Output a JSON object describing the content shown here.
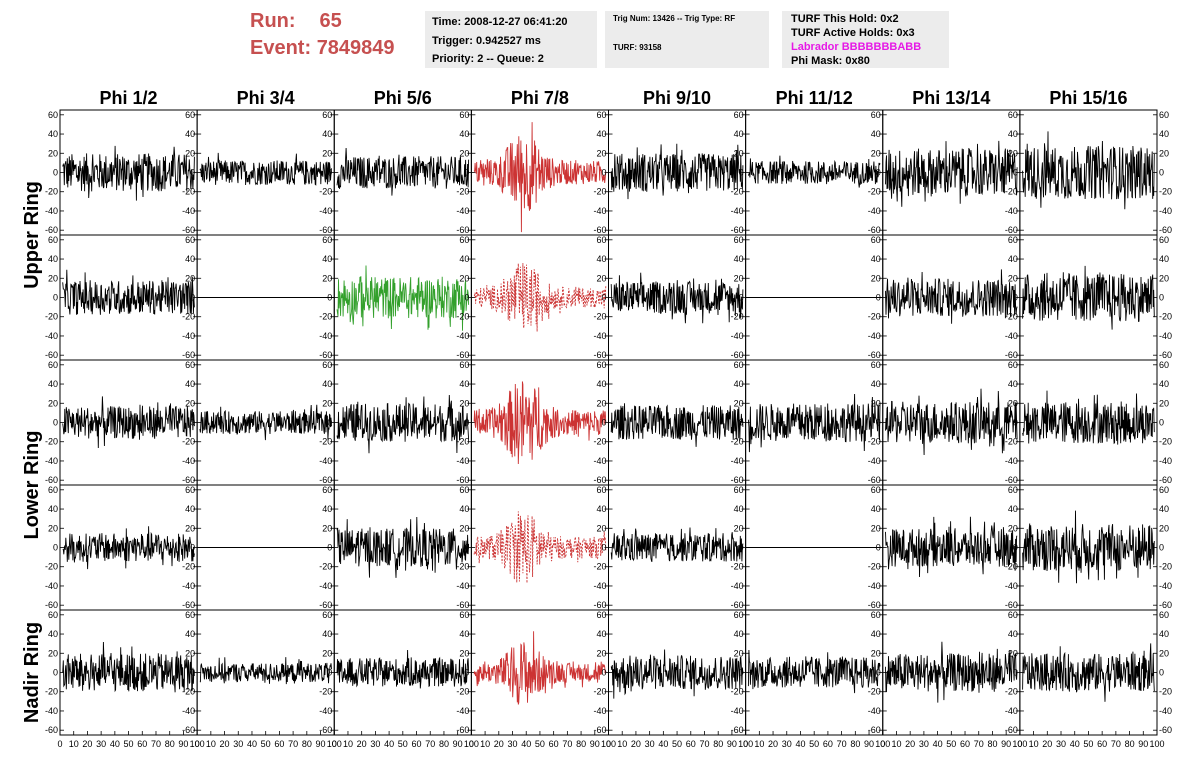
{
  "header": {
    "run_label": "Run:",
    "run_value": "65",
    "event_label": "Event:",
    "event_value": "7849849",
    "time": "Time: 2008-12-27 06:41:20",
    "trigger": "Trigger: 0.942527 ms",
    "priority": "Priority: 2 -- Queue: 2",
    "trig_num": "Trig Num: 13426 -- Trig Type: RF",
    "turf": "TURF: 93158",
    "turf_this_hold": "TURF This Hold: 0x2",
    "turf_active_holds": "TURF Active Holds: 0x3",
    "labrador": "Labrador BBBBBBBABB",
    "phi_mask": "Phi Mask: 0x80"
  },
  "colors": {
    "header_text": "#c65050",
    "labrador": "#e619e6",
    "panel_bg": "#ececec",
    "trace_default": "#000000",
    "trace_triggered": "#cc3333",
    "trace_green": "#33a02c",
    "trace_dashed": "#cc3333"
  },
  "chart_data": {
    "type": "line",
    "column_labels": [
      "Phi 1/2",
      "Phi 3/4",
      "Phi 5/6",
      "Phi 7/8",
      "Phi 9/10",
      "Phi 11/12",
      "Phi 13/14",
      "Phi 15/16"
    ],
    "ring_labels": [
      "Upper Ring",
      "Lower Ring",
      "Nadir Ring"
    ],
    "ylim": [
      -65,
      65
    ],
    "yticks": [
      -60,
      -40,
      -20,
      0,
      20,
      40,
      60
    ],
    "xlim": [
      0,
      100
    ],
    "xticks": [
      0,
      10,
      20,
      30,
      40,
      50,
      60,
      70,
      80,
      90,
      100
    ],
    "grid": false,
    "panels_note_style": [
      [
        "black",
        "black",
        "black",
        "red",
        "black",
        "black",
        "black",
        "black"
      ],
      [
        "black",
        "flat",
        "green",
        "red-dashed",
        "black",
        "flat",
        "black",
        "black"
      ],
      [
        "black",
        "black",
        "black",
        "red",
        "black",
        "black",
        "black",
        "black"
      ],
      [
        "black",
        "flat",
        "black",
        "red-dashed",
        "black",
        "flat",
        "black",
        "black"
      ],
      [
        "black",
        "black",
        "black",
        "red",
        "black",
        "black",
        "black",
        "black"
      ]
    ],
    "amplitudes": [
      [
        20,
        13,
        17,
        35,
        20,
        12,
        25,
        28
      ],
      [
        18,
        0,
        22,
        30,
        17,
        0,
        20,
        25
      ],
      [
        17,
        12,
        20,
        38,
        18,
        20,
        22,
        22
      ],
      [
        15,
        0,
        20,
        32,
        15,
        0,
        20,
        25
      ],
      [
        20,
        10,
        15,
        28,
        18,
        16,
        20,
        20
      ]
    ],
    "samples_per_trace": 260
  }
}
